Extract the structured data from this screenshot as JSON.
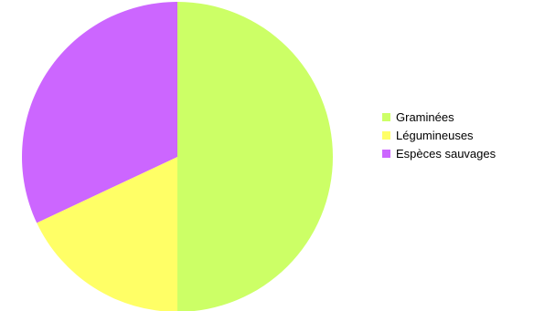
{
  "chart_data": {
    "type": "pie",
    "categories": [
      "Graminées",
      "Légumineuses",
      "Espèces sauvages"
    ],
    "values": [
      50,
      18,
      32
    ],
    "colors": [
      "#ccff66",
      "#ffff66",
      "#cc66ff"
    ],
    "legend_position": "right",
    "start": "top",
    "direction": "clockwise"
  }
}
